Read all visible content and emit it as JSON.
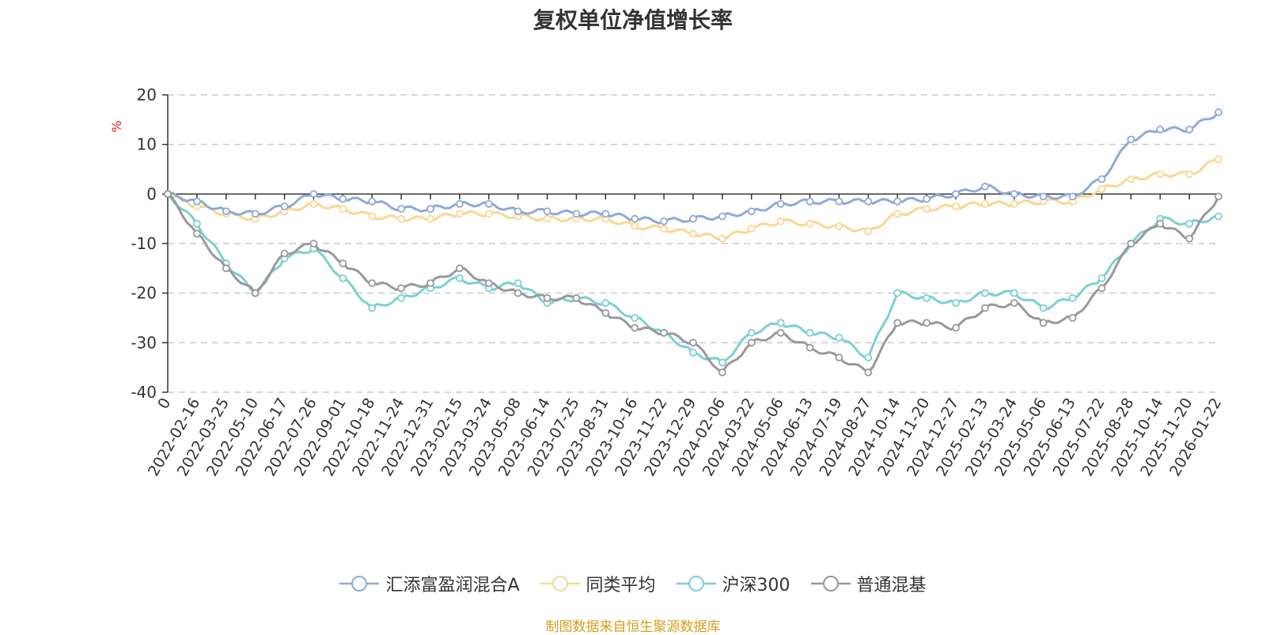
{
  "chart_data": {
    "type": "line",
    "title": "复权单位净值增长率",
    "ylabel": "%",
    "xlabel": "",
    "ylim": [
      -40,
      20
    ],
    "yticks": [
      20,
      10,
      0,
      -10,
      -20,
      -30,
      -40
    ],
    "grid": "horizontal dashed",
    "legend_position": "bottom-center",
    "x_tick_labels": [
      "0",
      "2022-02-16",
      "2022-03-25",
      "2022-05-10",
      "2022-06-17",
      "2022-07-26",
      "2022-09-01",
      "2022-10-18",
      "2022-11-24",
      "2022-12-31",
      "2023-02-15",
      "2023-03-24",
      "2023-05-08",
      "2023-06-14",
      "2023-07-25",
      "2023-08-31",
      "2023-10-16",
      "2023-11-22",
      "2023-12-29",
      "2024-02-06",
      "2024-03-22",
      "2024-05-06",
      "2024-06-13",
      "2024-07-19",
      "2024-08-27",
      "2024-10-14",
      "2024-11-20",
      "2024-12-27",
      "2025-02-13",
      "2025-03-24",
      "2025-05-06",
      "2025-06-13",
      "2025-07-22",
      "2025-08-28",
      "2025-10-14",
      "2025-11-20",
      "2026-01-22"
    ],
    "series": [
      {
        "name": "汇添富盈润混合A",
        "color": "#8eaad8",
        "values": [
          0,
          -1.5,
          -3.5,
          -4,
          -2.5,
          0,
          -1,
          -1.5,
          -3,
          -3,
          -2,
          -2,
          -3.5,
          -3.5,
          -4,
          -4,
          -5,
          -5.5,
          -5,
          -4.5,
          -3.5,
          -2,
          -1.5,
          -1.5,
          -1.5,
          -1.5,
          -1,
          0,
          1.5,
          0,
          -0.5,
          -0.5,
          3,
          11,
          13,
          13,
          16.5
        ]
      },
      {
        "name": "同类平均",
        "color": "#fad792",
        "values": [
          0,
          -2.5,
          -4,
          -5,
          -3.5,
          -2,
          -3,
          -4.5,
          -5,
          -5,
          -4,
          -4,
          -4.5,
          -5,
          -5,
          -5,
          -6.5,
          -7,
          -8,
          -9,
          -7,
          -5.5,
          -6,
          -6.5,
          -7.5,
          -4,
          -3,
          -2.5,
          -2,
          -2,
          -1.5,
          -1.5,
          1,
          3,
          4,
          4,
          7
        ]
      },
      {
        "name": "沪深300",
        "color": "#7bd0d5",
        "values": [
          0,
          -6,
          -14,
          -20,
          -13,
          -11,
          -17,
          -23,
          -21,
          -19,
          -17,
          -19,
          -18,
          -22,
          -21,
          -22,
          -25,
          -28,
          -32,
          -34,
          -28,
          -26,
          -28,
          -29,
          -33,
          -20,
          -21,
          -22,
          -20,
          -20,
          -23,
          -21,
          -17,
          -10,
          -5,
          -6,
          -4.5
        ]
      },
      {
        "name": "普通混基",
        "color": "#999999",
        "values": [
          0,
          -8,
          -15,
          -20,
          -12,
          -10,
          -14,
          -18,
          -19,
          -18,
          -15,
          -18,
          -20,
          -21,
          -21,
          -24,
          -27,
          -28,
          -30,
          -36,
          -30,
          -28,
          -31,
          -33,
          -36,
          -26,
          -26,
          -27,
          -23,
          -22,
          -26,
          -25,
          -19,
          -10,
          -6,
          -9,
          -0.5
        ]
      }
    ],
    "source_note": "制图数据来自恒生聚源数据库",
    "source_note_color": "#d4a020",
    "axis_label_color": "#e02020"
  }
}
